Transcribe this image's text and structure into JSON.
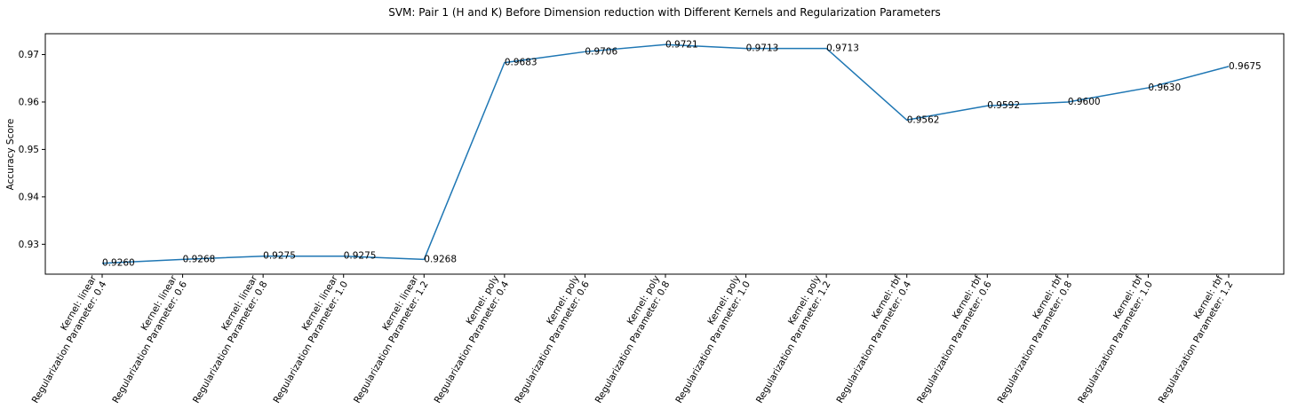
{
  "chart_data": {
    "type": "line",
    "title": "SVM: Pair 1 (H and K) Before Dimension reduction with Different Kernels and Regularization Parameters",
    "xlabel": "",
    "ylabel": "Accuracy Score",
    "categories": [
      [
        "Kernel: linear",
        "Regularization Parameter: 0.4"
      ],
      [
        "Kernel: linear",
        "Regularization Parameter: 0.6"
      ],
      [
        "Kernel: linear",
        "Regularization Parameter: 0.8"
      ],
      [
        "Kernel: linear",
        "Regularization Parameter: 1.0"
      ],
      [
        "Kernel: linear",
        "Regularization Parameter: 1.2"
      ],
      [
        "Kernel: poly",
        "Regularization Parameter: 0.4"
      ],
      [
        "Kernel: poly",
        "Regularization Parameter: 0.6"
      ],
      [
        "Kernel: poly",
        "Regularization Parameter: 0.8"
      ],
      [
        "Kernel: poly",
        "Regularization Parameter: 1.0"
      ],
      [
        "Kernel: poly",
        "Regularization Parameter: 1.2"
      ],
      [
        "Kernel: rbf",
        "Regularization Parameter: 0.4"
      ],
      [
        "Kernel: rbf",
        "Regularization Parameter: 0.6"
      ],
      [
        "Kernel: rbf",
        "Regularization Parameter: 0.8"
      ],
      [
        "Kernel: rbf",
        "Regularization Parameter: 1.0"
      ],
      [
        "Kernel: rbf",
        "Regularization Parameter: 1.2"
      ]
    ],
    "values": [
      0.926,
      0.9268,
      0.9275,
      0.9275,
      0.9268,
      0.9683,
      0.9706,
      0.9721,
      0.9713,
      0.9713,
      0.9562,
      0.9592,
      0.96,
      0.963,
      0.9675
    ],
    "data_labels": [
      "0.9260",
      "0.9268",
      "0.9275",
      "0.9275",
      "0.9268",
      "0.9683",
      "0.9706",
      "0.9721",
      "0.9713",
      "0.9713",
      "0.9562",
      "0.9592",
      "0.9600",
      "0.9630",
      "0.9675"
    ],
    "yticks": [
      0.93,
      0.94,
      0.95,
      0.96,
      0.97
    ],
    "ytick_labels": [
      "0.93",
      "0.94",
      "0.95",
      "0.96",
      "0.97"
    ],
    "ylim": [
      0.9237,
      0.9744
    ],
    "grid": false,
    "legend": "none",
    "line_color": "#1f77b4"
  }
}
